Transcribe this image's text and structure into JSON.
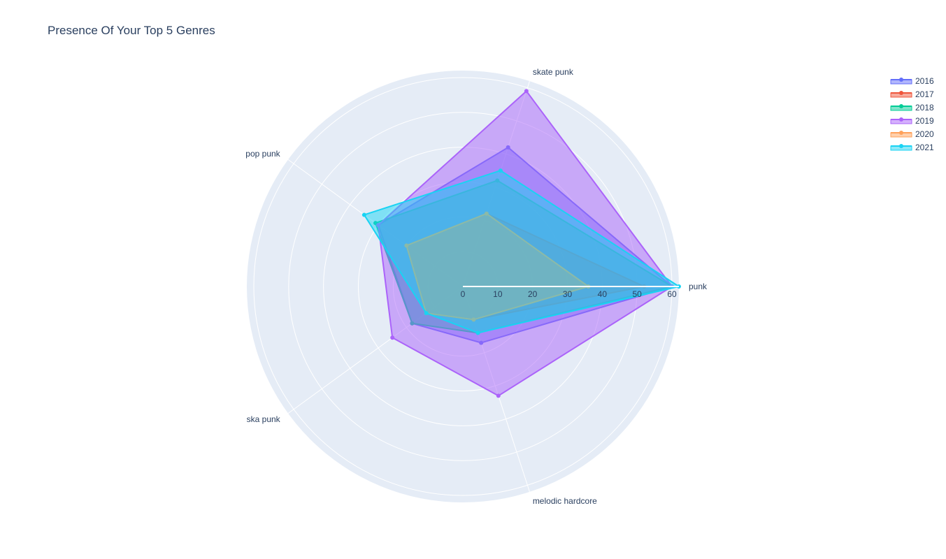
{
  "chart_data": {
    "type": "radar",
    "title": "Presence Of Your Top 5 Genres",
    "categories": [
      "punk",
      "skate punk",
      "pop punk",
      "ska punk",
      "melodic hardcore"
    ],
    "radial_ticks": [
      0,
      10,
      20,
      30,
      40,
      50,
      60
    ],
    "radial_range": [
      0,
      62
    ],
    "grid": true,
    "legend_position": "top-right",
    "series": [
      {
        "name": "2016",
        "color": "#636efa",
        "values": [
          60,
          42,
          30,
          18,
          17
        ]
      },
      {
        "name": "2017",
        "color": "#ef553b",
        "values": [
          52,
          22,
          20,
          13,
          10
        ]
      },
      {
        "name": "2018",
        "color": "#00cc96",
        "values": [
          60,
          32,
          31,
          18,
          14
        ]
      },
      {
        "name": "2019",
        "color": "#ab63fa",
        "values": [
          60,
          59,
          30,
          25,
          33
        ]
      },
      {
        "name": "2020",
        "color": "#ffa15a",
        "values": [
          36,
          22,
          20,
          13,
          10
        ]
      },
      {
        "name": "2021",
        "color": "#19d3f3",
        "values": [
          62,
          35,
          35,
          13,
          14
        ]
      }
    ]
  }
}
